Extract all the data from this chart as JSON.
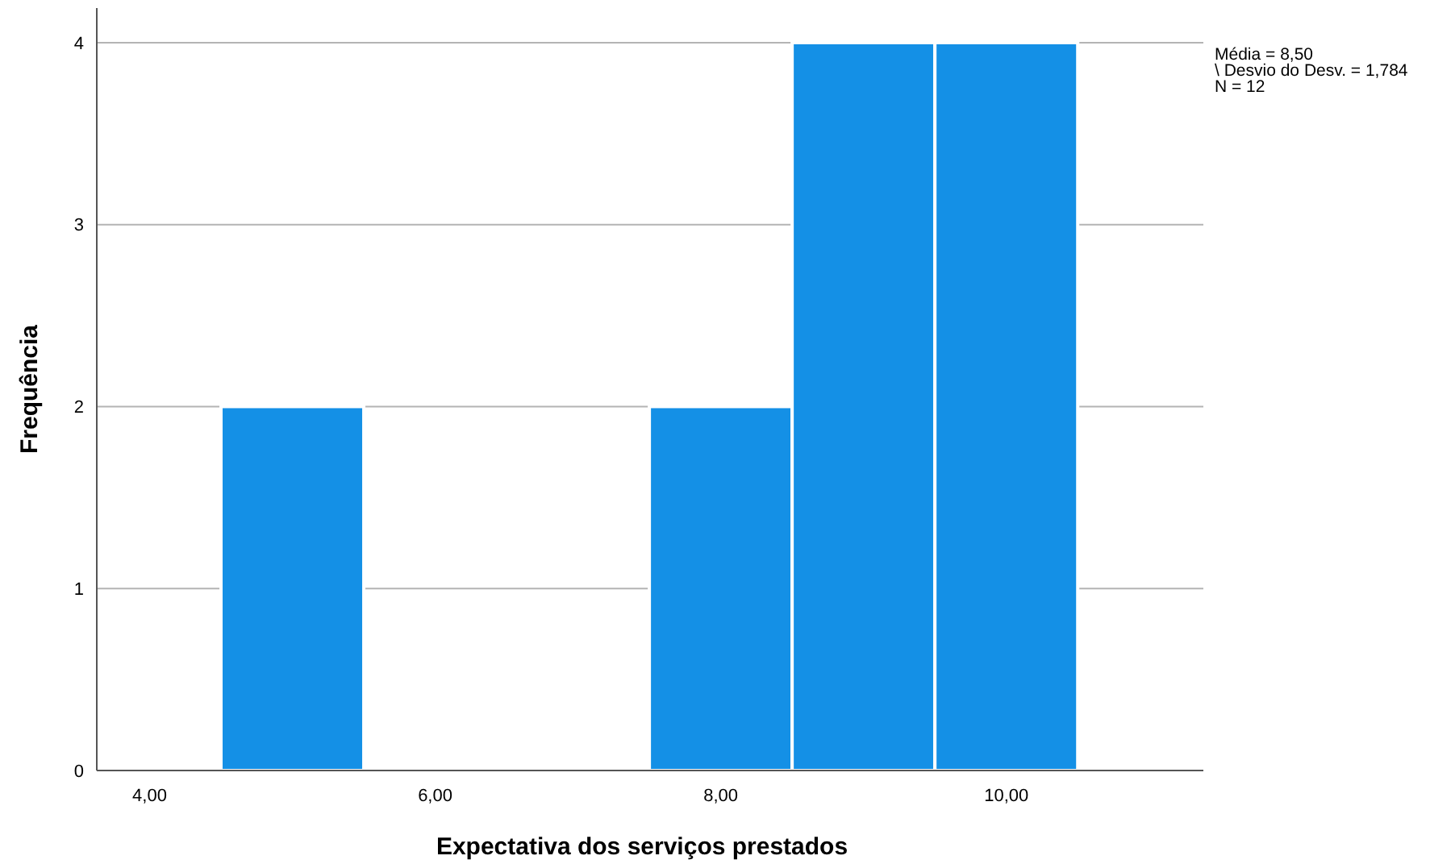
{
  "chart_data": {
    "type": "histogram",
    "xlabel": "Expectativa dos serviços prestados",
    "ylabel": "Frequência",
    "bins": [
      4.5,
      5.5,
      6.5,
      7.5,
      8.5,
      9.5,
      10.5
    ],
    "values": [
      2,
      0,
      0,
      2,
      4,
      4
    ],
    "color": "#1490e6",
    "xlim": [
      3.63,
      11.38
    ],
    "ylim": [
      0,
      4.19
    ],
    "xticks": [
      {
        "value": 4,
        "label": "4,00"
      },
      {
        "value": 6,
        "label": "6,00"
      },
      {
        "value": 8,
        "label": "8,00"
      },
      {
        "value": 10,
        "label": "10,00"
      }
    ],
    "yticks": [
      0,
      1,
      2,
      3,
      4
    ],
    "grid": "y",
    "annotations": [
      "Média = 8,50",
      "\\ Desvio do Desv. = 1,784",
      "N = 12"
    ]
  }
}
